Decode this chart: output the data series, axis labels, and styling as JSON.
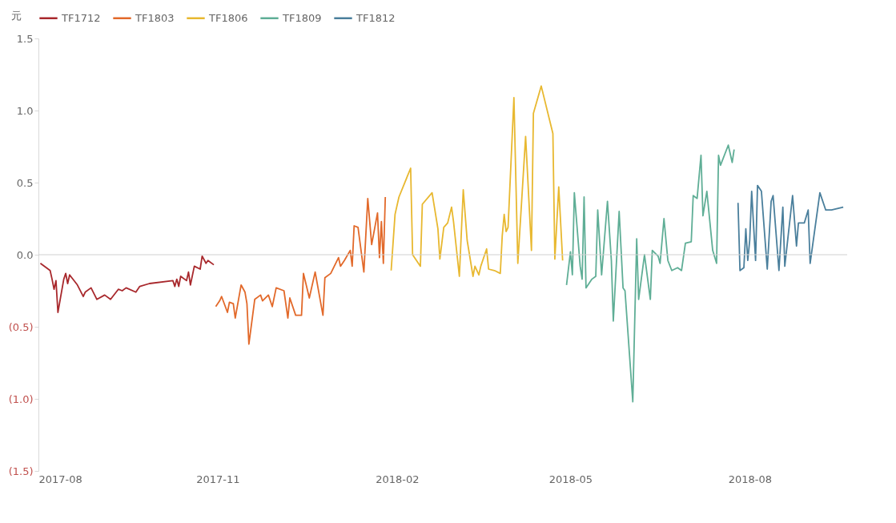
{
  "chart_data": {
    "type": "line",
    "ylabel": "元",
    "ylim": [
      -1.5,
      1.5
    ],
    "yticks": [
      {
        "value": -1.5,
        "label": "(1.5)"
      },
      {
        "value": -1.0,
        "label": "(1.0)"
      },
      {
        "value": -0.5,
        "label": "(0.5)"
      },
      {
        "value": 0,
        "label": "0.0"
      },
      {
        "value": 0.5,
        "label": "0.5"
      },
      {
        "value": 1.0,
        "label": "1.0"
      },
      {
        "value": 1.5,
        "label": "1.5"
      }
    ],
    "xlim": [
      "2017-08-01",
      "2018-09-20"
    ],
    "xticks": [
      "2017-08",
      "2017-11",
      "2018-02",
      "2018-05",
      "2018-08"
    ],
    "grid": false,
    "legend": "top",
    "line_style": "solid",
    "marker": "none",
    "ref_lines": [
      {
        "axis": "y",
        "value": 0,
        "color": "#d0d0d0"
      }
    ],
    "series": [
      {
        "name": "TF1712",
        "color": "#a8282c",
        "x": [
          "2017-08-02",
          "2017-08-07",
          "2017-08-08",
          "2017-08-09",
          "2017-08-10",
          "2017-08-11",
          "2017-08-14",
          "2017-08-15",
          "2017-08-16",
          "2017-08-17",
          "2017-08-21",
          "2017-08-24",
          "2017-08-25",
          "2017-08-28",
          "2017-08-31",
          "2017-09-04",
          "2017-09-07",
          "2017-09-11",
          "2017-09-13",
          "2017-09-15",
          "2017-09-20",
          "2017-09-22",
          "2017-09-27",
          "2017-10-09",
          "2017-10-10",
          "2017-10-11",
          "2017-10-12",
          "2017-10-13",
          "2017-10-16",
          "2017-10-17",
          "2017-10-18",
          "2017-10-20",
          "2017-10-23",
          "2017-10-24",
          "2017-10-26",
          "2017-10-27",
          "2017-10-30"
        ],
        "values": [
          -0.06,
          -0.11,
          -0.17,
          -0.24,
          -0.18,
          -0.4,
          -0.17,
          -0.13,
          -0.2,
          -0.14,
          -0.21,
          -0.29,
          -0.26,
          -0.23,
          -0.31,
          -0.28,
          -0.31,
          -0.24,
          -0.25,
          -0.23,
          -0.26,
          -0.22,
          -0.2,
          -0.18,
          -0.22,
          -0.17,
          -0.22,
          -0.15,
          -0.18,
          -0.12,
          -0.21,
          -0.08,
          -0.1,
          -0.01,
          -0.06,
          -0.04,
          -0.07
        ]
      },
      {
        "name": "TF1803",
        "color": "#e2692a",
        "x": [
          "2017-10-31",
          "2017-11-02",
          "2017-11-03",
          "2017-11-06",
          "2017-11-07",
          "2017-11-09",
          "2017-11-10",
          "2017-11-13",
          "2017-11-15",
          "2017-11-16",
          "2017-11-17",
          "2017-11-20",
          "2017-11-23",
          "2017-11-24",
          "2017-11-27",
          "2017-11-29",
          "2017-12-01",
          "2017-12-05",
          "2017-12-07",
          "2017-12-08",
          "2017-12-11",
          "2017-12-14",
          "2017-12-15",
          "2017-12-18",
          "2017-12-21",
          "2017-12-25",
          "2017-12-26",
          "2017-12-29",
          "2018-01-02",
          "2018-01-03",
          "2018-01-05",
          "2018-01-08",
          "2018-01-09",
          "2018-01-10",
          "2018-01-12",
          "2018-01-15",
          "2018-01-17",
          "2018-01-18",
          "2018-01-19",
          "2018-01-22",
          "2018-01-23",
          "2018-01-24",
          "2018-01-25",
          "2018-01-26"
        ],
        "values": [
          -0.36,
          -0.32,
          -0.29,
          -0.4,
          -0.33,
          -0.34,
          -0.44,
          -0.21,
          -0.26,
          -0.34,
          -0.62,
          -0.31,
          -0.28,
          -0.32,
          -0.28,
          -0.36,
          -0.23,
          -0.25,
          -0.44,
          -0.3,
          -0.42,
          -0.42,
          -0.13,
          -0.3,
          -0.12,
          -0.42,
          -0.16,
          -0.13,
          -0.02,
          -0.08,
          -0.04,
          0.03,
          -0.08,
          0.2,
          0.19,
          -0.12,
          0.39,
          0.23,
          0.07,
          0.29,
          -0.02,
          0.23,
          -0.06,
          0.4
        ]
      },
      {
        "name": "TF1806",
        "color": "#e8b830",
        "x": [
          "2018-01-29",
          "2018-01-31",
          "2018-02-02",
          "2018-02-08",
          "2018-02-09",
          "2018-02-13",
          "2018-02-14",
          "2018-02-19",
          "2018-02-22",
          "2018-02-23",
          "2018-02-25",
          "2018-02-27",
          "2018-03-01",
          "2018-03-02",
          "2018-03-05",
          "2018-03-07",
          "2018-03-09",
          "2018-03-12",
          "2018-03-13",
          "2018-03-15",
          "2018-03-16",
          "2018-03-19",
          "2018-03-20",
          "2018-03-23",
          "2018-03-26",
          "2018-03-27",
          "2018-03-28",
          "2018-03-29",
          "2018-03-30",
          "2018-04-02",
          "2018-04-04",
          "2018-04-08",
          "2018-04-11",
          "2018-04-12",
          "2018-04-16",
          "2018-04-22",
          "2018-04-23",
          "2018-04-25",
          "2018-04-27"
        ],
        "values": [
          -0.11,
          0.28,
          0.4,
          0.6,
          0.0,
          -0.08,
          0.35,
          0.43,
          0.18,
          -0.03,
          0.19,
          0.22,
          0.33,
          0.23,
          -0.15,
          0.45,
          0.1,
          -0.15,
          -0.08,
          -0.14,
          -0.08,
          0.04,
          -0.1,
          -0.11,
          -0.13,
          0.13,
          0.28,
          0.16,
          0.19,
          1.09,
          -0.06,
          0.82,
          0.03,
          0.98,
          1.17,
          0.84,
          -0.03,
          0.47,
          -0.04
        ]
      },
      {
        "name": "TF1809",
        "color": "#5fae96",
        "x": [
          "2018-04-29",
          "2018-05-01",
          "2018-05-02",
          "2018-05-03",
          "2018-05-06",
          "2018-05-07",
          "2018-05-08",
          "2018-05-09",
          "2018-05-12",
          "2018-05-14",
          "2018-05-15",
          "2018-05-17",
          "2018-05-20",
          "2018-05-22",
          "2018-05-23",
          "2018-05-26",
          "2018-05-28",
          "2018-05-29",
          "2018-06-02",
          "2018-06-04",
          "2018-06-05",
          "2018-06-08",
          "2018-06-11",
          "2018-06-12",
          "2018-06-15",
          "2018-06-16",
          "2018-06-18",
          "2018-06-20",
          "2018-06-22",
          "2018-06-25",
          "2018-06-27",
          "2018-06-29",
          "2018-07-02",
          "2018-07-03",
          "2018-07-05",
          "2018-07-07",
          "2018-07-08",
          "2018-07-10",
          "2018-07-13",
          "2018-07-15",
          "2018-07-16",
          "2018-07-17",
          "2018-07-21",
          "2018-07-23",
          "2018-07-24"
        ],
        "values": [
          -0.21,
          0.02,
          -0.14,
          0.43,
          -0.08,
          -0.17,
          0.4,
          -0.23,
          -0.17,
          -0.15,
          0.31,
          -0.14,
          0.37,
          -0.04,
          -0.46,
          0.3,
          -0.23,
          -0.25,
          -1.02,
          0.11,
          -0.31,
          0.0,
          -0.31,
          0.03,
          -0.01,
          -0.06,
          0.25,
          -0.04,
          -0.11,
          -0.09,
          -0.11,
          0.08,
          0.09,
          0.41,
          0.39,
          0.69,
          0.27,
          0.44,
          0.03,
          -0.06,
          0.69,
          0.62,
          0.76,
          0.64,
          0.73
        ]
      },
      {
        "name": "TF1812",
        "color": "#4a7f9c",
        "x": [
          "2018-07-26",
          "2018-07-27",
          "2018-07-29",
          "2018-07-30",
          "2018-07-31",
          "2018-08-01",
          "2018-08-02",
          "2018-08-04",
          "2018-08-05",
          "2018-08-07",
          "2018-08-10",
          "2018-08-12",
          "2018-08-13",
          "2018-08-16",
          "2018-08-18",
          "2018-08-19",
          "2018-08-23",
          "2018-08-25",
          "2018-08-26",
          "2018-08-29",
          "2018-08-31",
          "2018-09-01",
          "2018-09-06",
          "2018-09-09",
          "2018-09-12",
          "2018-09-18"
        ],
        "values": [
          0.36,
          -0.11,
          -0.09,
          0.18,
          -0.04,
          0.1,
          0.44,
          -0.04,
          0.48,
          0.44,
          -0.1,
          0.37,
          0.41,
          -0.11,
          0.33,
          -0.08,
          0.41,
          0.06,
          0.22,
          0.22,
          0.31,
          -0.06,
          0.43,
          0.31,
          0.31,
          0.33
        ]
      }
    ]
  }
}
